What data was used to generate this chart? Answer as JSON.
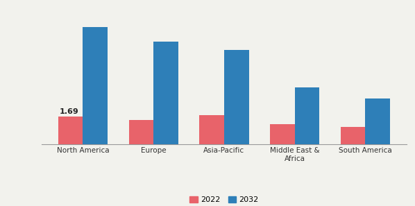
{
  "categories": [
    "North America",
    "Europe",
    "Asia-Pacific",
    "Middle East &\nAfrica",
    "South America"
  ],
  "values_2022": [
    1.69,
    1.5,
    1.8,
    1.25,
    1.05
  ],
  "values_2032": [
    7.2,
    6.3,
    5.8,
    3.5,
    2.8
  ],
  "color_2022": "#e8636a",
  "color_2032": "#2e7fb8",
  "annotation_text": "1.69",
  "bar_width": 0.35,
  "legend_labels": [
    "2022",
    "2032"
  ],
  "background_color": "#f2f2ed",
  "ylim": [
    0,
    8.5
  ],
  "ylabel_fontsize": 6.0,
  "xlabel_fontsize": 7.5,
  "annotation_fontsize": 8.0
}
